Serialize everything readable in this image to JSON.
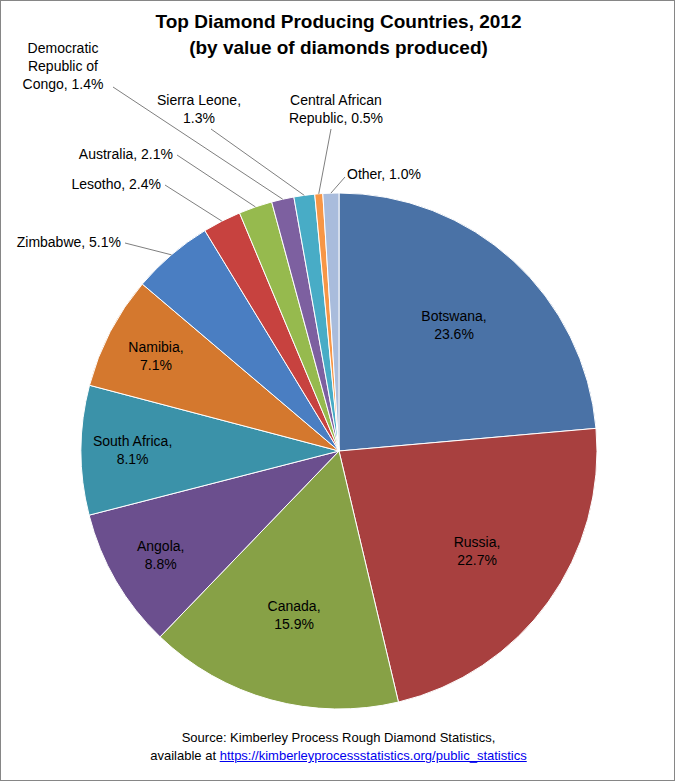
{
  "chart_data": {
    "type": "pie",
    "title": "Top Diamond Producing Countries, 2012",
    "subtitle": "(by value of diamonds produced)",
    "categories": [
      "Botswana",
      "Russia",
      "Canada",
      "Angola",
      "South Africa",
      "Namibia",
      "Zimbabwe",
      "Lesotho",
      "Australia",
      "Democratic Republic of Congo",
      "Sierra Leone",
      "Central African Republic",
      "Other"
    ],
    "values": [
      23.6,
      22.7,
      15.9,
      8.8,
      8.1,
      7.1,
      5.1,
      2.4,
      2.1,
      1.4,
      1.3,
      0.5,
      1.0
    ],
    "value_labels": [
      "Botswana,\n23.6%",
      "Russia,\n22.7%",
      "Canada,\n15.9%",
      "Angola,\n8.8%",
      "South Africa,\n8.1%",
      "Namibia,\n7.1%",
      "Zimbabwe, 5.1%",
      "Lesotho, 2.4%",
      "Australia, 2.1%",
      "Democratic\nRepublic of\nCongo, 1.4%",
      "Sierra Leone,\n1.3%",
      "Central African\nRepublic, 0.5%",
      "Other, 1.0%"
    ],
    "colors": [
      "#4A72A6",
      "#A8403F",
      "#87A146",
      "#6B4F8E",
      "#3B92A9",
      "#D4782E",
      "#4A7EC2",
      "#C7423F",
      "#96BA4E",
      "#7D60A0",
      "#48ACC6",
      "#F79646",
      "#A9BCDC"
    ],
    "data_labels": true,
    "source": {
      "text": [
        "Source: Kimberley Process Rough Diamond Statistics,",
        "available at"
      ],
      "url": "https://kimberleyprocessstatistics.org/public_statistics"
    }
  }
}
